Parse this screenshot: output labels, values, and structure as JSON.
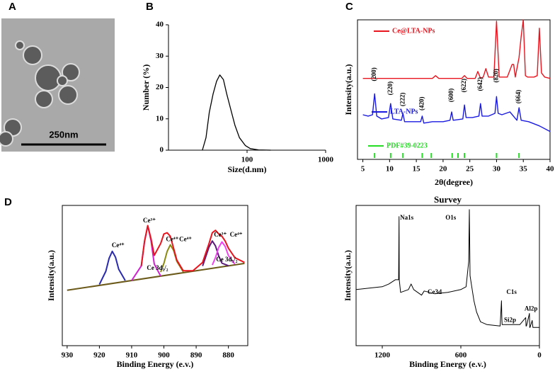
{
  "panel_labels": [
    "A",
    "B",
    "C",
    "D"
  ],
  "micrograph": {
    "scale_bar_label": "250nm"
  },
  "chart_data": [
    {
      "type": "line",
      "x_label": "Size(d.nm)",
      "y_label": "Number (%)",
      "xlog": true,
      "xlim": [
        10,
        1000
      ],
      "ylim": [
        0,
        40
      ],
      "xticks": [
        100,
        1000
      ],
      "yticks": [
        0,
        10,
        20,
        30,
        40
      ],
      "series": [
        {
          "color": "#000000",
          "x": [
            27,
            30,
            33,
            37,
            41,
            45,
            50,
            55,
            62,
            70,
            80,
            95,
            110,
            140,
            200
          ],
          "values": [
            0,
            4,
            12,
            18,
            22,
            24,
            22.5,
            18,
            13,
            8,
            4,
            1.5,
            0.5,
            0.1,
            0
          ]
        }
      ]
    },
    {
      "type": "line",
      "x_label": "2θ(degree)",
      "y_label": "Intensity(a.u.)",
      "xlim": [
        4,
        40
      ],
      "ylim": [
        0,
        100
      ],
      "xticks": [
        5,
        10,
        15,
        20,
        25,
        30,
        35,
        40
      ],
      "series": [
        {
          "name": "Ce@LTA-NPs",
          "color": "#e8141e",
          "x": [
            5,
            10,
            15,
            18,
            18.6,
            19.2,
            22,
            23.5,
            24,
            24.5,
            26,
            26.5,
            27,
            27.5,
            28,
            28.5,
            29.5,
            30,
            30.5,
            32,
            32.9,
            33.2,
            33.5,
            34.2,
            34.6,
            35,
            35.4,
            35.8,
            37,
            37.6,
            38,
            38.4,
            39,
            40
          ],
          "values": [
            58,
            58,
            58,
            58,
            60,
            58,
            58,
            58,
            60,
            58,
            58,
            63,
            58,
            59,
            65,
            59,
            59,
            99,
            59,
            59,
            68,
            68,
            59,
            73,
            88,
            100,
            60,
            59,
            59,
            60,
            94,
            62,
            59,
            58
          ]
        },
        {
          "name": "LTA-NPs",
          "color": "#1a1ae0",
          "x": [
            5,
            6,
            6.8,
            7.2,
            7.6,
            8.5,
            9.8,
            10.2,
            10.6,
            12.2,
            12.5,
            12.8,
            14,
            15.8,
            16.1,
            16.4,
            18,
            20,
            21.3,
            21.6,
            21.9,
            23.7,
            24,
            24.3,
            25.5,
            26.7,
            27,
            27.3,
            28.5,
            29.7,
            30,
            30.3,
            31,
            32.5,
            33.8,
            34.2,
            34.6,
            36,
            38,
            40
          ],
          "values": [
            32,
            31,
            32,
            47,
            31,
            29,
            30,
            40,
            29,
            28,
            33,
            27,
            27,
            27,
            31,
            26,
            27,
            27,
            28,
            34,
            28,
            29,
            39,
            30,
            30,
            31,
            40,
            31,
            31,
            33,
            45,
            33,
            32,
            34,
            28,
            37,
            28,
            27,
            24,
            20
          ]
        }
      ],
      "reference": {
        "name": "PDF#39-0223",
        "color": "#22dd22",
        "x": [
          7.2,
          10.2,
          12.5,
          16.1,
          17.8,
          21.7,
          22.8,
          24,
          30,
          34.2
        ]
      },
      "annotation_orientation": "vertical",
      "annotations": [
        {
          "text": "(200)",
          "x": 7.2,
          "y": 56
        },
        {
          "text": "(220)",
          "x": 10.2,
          "y": 46
        },
        {
          "text": "(222)",
          "x": 12.5,
          "y": 38
        },
        {
          "text": "(420)",
          "x": 16.1,
          "y": 35
        },
        {
          "text": "(600)",
          "x": 21.6,
          "y": 41
        },
        {
          "text": "(622)",
          "x": 24,
          "y": 48
        },
        {
          "text": "(642)",
          "x": 27,
          "y": 49
        },
        {
          "text": "(820)",
          "x": 30,
          "y": 55
        },
        {
          "text": "(664)",
          "x": 34.2,
          "y": 40
        }
      ]
    },
    {
      "type": "line",
      "x_label": "Binding Energy (e.v.)",
      "y_label": "Intensity(a.u.)",
      "xlim": [
        931.5,
        874
      ],
      "ylim": [
        -18,
        100
      ],
      "xticks": [
        930,
        920,
        910,
        900,
        890,
        880
      ],
      "series": [
        {
          "color": "#6b5a1a",
          "x": [
            930,
            875
          ],
          "values": [
            28.6,
            51.2
          ]
        },
        {
          "color": "#2a2ab0",
          "x": [
            920,
            918,
            917,
            916,
            915,
            914,
            912
          ],
          "values": [
            33.5,
            44.6,
            55.5,
            61.4,
            56.4,
            46.3,
            36.8
          ]
        },
        {
          "color": "#d020d0",
          "x": [
            910,
            907,
            906,
            905,
            904,
            903,
            901
          ],
          "values": [
            36.8,
            49.1,
            69.7,
            82.9,
            70.5,
            50.7,
            40.5
          ]
        },
        {
          "color": "#8a8a10",
          "x": [
            901,
            900,
            899,
            898,
            897,
            896,
            894
          ],
          "values": [
            43.9,
            51.2,
            61.3,
            66.8,
            62.2,
            52.9,
            44.1
          ]
        },
        {
          "color": "#5a1a7a",
          "x": [
            888,
            886,
            885,
            884,
            883,
            882,
            880
          ],
          "values": [
            49,
            65.1,
            70.1,
            65.9,
            57.3,
            51.4,
            49.2
          ]
        },
        {
          "color": "#ee44ee",
          "x": [
            885,
            884,
            883,
            882,
            881,
            880,
            878
          ],
          "values": [
            49.9,
            56.1,
            64.7,
            69.3,
            65.5,
            57.8,
            50.6
          ]
        },
        {
          "color": "#e8141e",
          "x": [
            907,
            906,
            905,
            904,
            903,
            901,
            900,
            899,
            898,
            897,
            896,
            894,
            891,
            888,
            886,
            885,
            884,
            883,
            882,
            881,
            880,
            878,
            875
          ],
          "values": [
            49,
            70,
            83,
            72,
            58,
            68,
            76,
            77,
            74,
            64,
            54,
            45,
            45,
            52,
            68,
            77,
            79,
            76,
            74,
            70,
            64,
            56,
            52
          ]
        }
      ],
      "annotations": [
        {
          "text": "Ce⁴⁺",
          "x": 914.2,
          "y": 66
        },
        {
          "text": "Ce³⁺",
          "x": 904.5,
          "y": 87
        },
        {
          "text": "Ce⁴⁺",
          "x": 897.4,
          "y": 71
        },
        {
          "text": "Ce⁴⁺",
          "x": 893.3,
          "y": 71
        },
        {
          "text": "Ce 3d₃/₂",
          "x": 902,
          "y": 47
        },
        {
          "text": "Ce³⁺",
          "x": 882.5,
          "y": 75
        },
        {
          "text": "Ce⁴⁺",
          "x": 877.6,
          "y": 75
        },
        {
          "text": "Ce 3d₅/₂",
          "x": 880.5,
          "y": 54
        }
      ]
    },
    {
      "type": "line",
      "title": "Survey",
      "x_label": "Binding Energy (e.v.)",
      "y_label": "Intensity(a.u.)",
      "xlim": [
        1400,
        0
      ],
      "ylim": [
        0,
        100
      ],
      "xticks": [
        1200,
        600,
        0
      ],
      "series": [
        {
          "color": "#000000",
          "x": [
            1400,
            1300,
            1200,
            1150,
            1100,
            1075,
            1072,
            1070,
            1060,
            1000,
            980,
            960,
            900,
            880,
            800,
            700,
            600,
            560,
            540,
            535,
            530,
            520,
            500,
            480,
            450,
            400,
            300,
            290,
            287,
            285,
            200,
            150,
            105,
            102,
            99,
            76,
            74,
            72,
            55,
            50,
            45,
            20,
            0
          ],
          "values": [
            40,
            41,
            42,
            44,
            47,
            47,
            92,
            47,
            38,
            40,
            44,
            40,
            36,
            39,
            37,
            38,
            40,
            42,
            60,
            97,
            50,
            44,
            32,
            24,
            17,
            15,
            14,
            32,
            20,
            15,
            15,
            15,
            20,
            14,
            14,
            23,
            13,
            13,
            18,
            13,
            13,
            13,
            13
          ]
        }
      ],
      "annotations": [
        {
          "text": "Na1s",
          "x": 1013,
          "y": 91
        },
        {
          "text": "O1s",
          "x": 677,
          "y": 91
        },
        {
          "text": "Ce3d",
          "x": 800,
          "y": 38
        },
        {
          "text": "C1s",
          "x": 213,
          "y": 38
        },
        {
          "text": "Si2p",
          "x": 224,
          "y": 18
        },
        {
          "text": "Al2p",
          "x": 64,
          "y": 26
        }
      ]
    }
  ]
}
